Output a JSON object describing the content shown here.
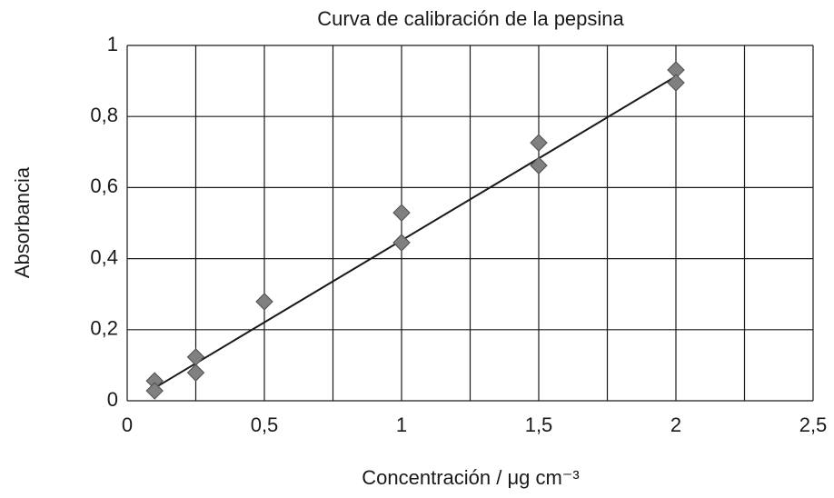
{
  "chart_data": {
    "type": "scatter",
    "title": "Curva de calibración de la pepsina",
    "x_label": "Concentración / μg cm⁻³",
    "y_label": "Absorbancia",
    "series": [
      {
        "color": "#808080",
        "x": [
          0.1,
          0.1,
          0.25,
          0.25,
          0.5,
          1,
          1,
          1.5,
          1.5,
          2,
          2
        ],
        "values": [
          0.056,
          0.028,
          0.123,
          0.079,
          0.279,
          0.529,
          0.445,
          0.726,
          0.662,
          0.931,
          0.895
        ]
      }
    ],
    "fit_line": {
      "color": "#1a1a1a",
      "x": [
        0.1,
        2
      ],
      "values": [
        0.036,
        0.913
      ]
    },
    "xlim": [
      0,
      2.5
    ],
    "xticks": [
      0,
      {
        "value": 0.5,
        "label": "0,5"
      },
      1,
      {
        "value": 1.5,
        "label": "1,5"
      },
      2,
      {
        "value": 2.5,
        "label": "2,5"
      }
    ],
    "xminor": [
      0.25,
      0.75,
      1.25,
      1.75,
      2.25
    ],
    "ylim": [
      0,
      1
    ],
    "yticks": [
      0,
      {
        "value": 0.2,
        "label": "0,2"
      },
      {
        "value": 0.4,
        "label": "0,4"
      },
      {
        "value": 0.6,
        "label": "0,6"
      },
      {
        "value": 0.8,
        "label": "0,8"
      },
      1
    ],
    "grid": true
  }
}
